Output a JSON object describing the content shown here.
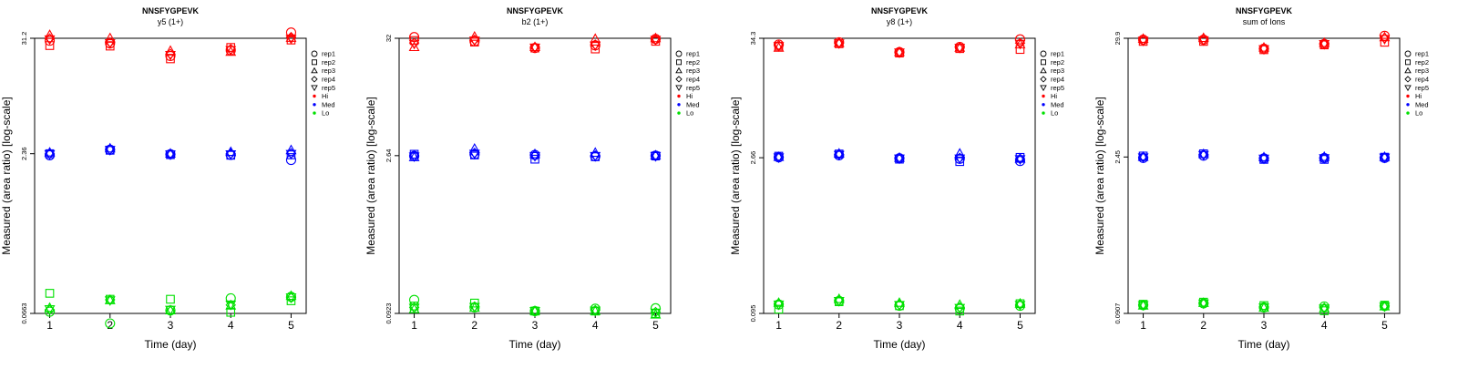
{
  "colors": {
    "Hi": "#ff0000",
    "Med": "#0000ff",
    "Lo": "#00e000",
    "axis": "#000000"
  },
  "legend": {
    "entries": [
      {
        "label": "rep1",
        "symbol": "circle"
      },
      {
        "label": "rep2",
        "symbol": "square"
      },
      {
        "label": "rep3",
        "symbol": "triangle-up"
      },
      {
        "label": "rep4",
        "symbol": "diamond"
      },
      {
        "label": "rep5",
        "symbol": "triangle-down"
      },
      {
        "label": "Hi",
        "symbol": "dot",
        "color_key": "Hi"
      },
      {
        "label": "Med",
        "symbol": "dot",
        "color_key": "Med"
      },
      {
        "label": "Lo",
        "symbol": "dot",
        "color_key": "Lo"
      }
    ]
  },
  "chart_data": [
    {
      "type": "scatter",
      "title": "NNSFYGPEVK",
      "subtitle": "y5 (1+)",
      "xlabel": "Time (day)",
      "ylabel": "Measured (area ratio) [log-scale]",
      "x_ticks": [
        1,
        2,
        3,
        4,
        5
      ],
      "y_tick_labels": [
        "0.0663",
        "2.36",
        "31.2"
      ],
      "y_scale": "log",
      "ylim": [
        0.0663,
        31.2
      ],
      "grid": false,
      "legend_position": "right",
      "series": [
        {
          "level": "Hi",
          "rep": "rep1",
          "values": [
            29.5,
            27.8,
            21.0,
            23.8,
            35.5
          ]
        },
        {
          "level": "Hi",
          "rep": "rep2",
          "values": [
            26.5,
            26.2,
            19.7,
            25.4,
            30.0
          ]
        },
        {
          "level": "Hi",
          "rep": "rep3",
          "values": [
            33.5,
            31.2,
            23.5,
            23.0,
            31.5
          ]
        },
        {
          "level": "Hi",
          "rep": "rep4",
          "values": [
            31.0,
            28.5,
            22.0,
            24.5,
            32.0
          ]
        },
        {
          "level": "Hi",
          "rep": "rep5",
          "values": [
            30.5,
            28.0,
            21.5,
            24.0,
            31.0
          ]
        },
        {
          "level": "Med",
          "rep": "rep1",
          "values": [
            2.28,
            2.58,
            2.33,
            2.3,
            2.05
          ]
        },
        {
          "level": "Med",
          "rep": "rep2",
          "values": [
            2.36,
            2.55,
            2.31,
            2.28,
            2.3
          ]
        },
        {
          "level": "Med",
          "rep": "rep3",
          "values": [
            2.42,
            2.65,
            2.36,
            2.45,
            2.55
          ]
        },
        {
          "level": "Med",
          "rep": "rep4",
          "values": [
            2.35,
            2.6,
            2.33,
            2.36,
            2.38
          ]
        },
        {
          "level": "Med",
          "rep": "rep5",
          "values": [
            2.34,
            2.57,
            2.32,
            2.33,
            2.35
          ]
        },
        {
          "level": "Lo",
          "rep": "rep1",
          "values": [
            0.069,
            0.053,
            0.071,
            0.093,
            0.096
          ]
        },
        {
          "level": "Lo",
          "rep": "rep2",
          "values": [
            0.104,
            0.091,
            0.091,
            0.068,
            0.088
          ]
        },
        {
          "level": "Lo",
          "rep": "rep3",
          "values": [
            0.075,
            0.089,
            0.071,
            0.079,
            0.098
          ]
        },
        {
          "level": "Lo",
          "rep": "rep4",
          "values": [
            0.072,
            0.09,
            0.07,
            0.08,
            0.094
          ]
        },
        {
          "level": "Lo",
          "rep": "rep5",
          "values": [
            0.073,
            0.089,
            0.072,
            0.081,
            0.095
          ]
        }
      ]
    },
    {
      "type": "scatter",
      "title": "NNSFYGPEVK",
      "subtitle": "b2 (1+)",
      "xlabel": "Time (day)",
      "ylabel": "Measured (area ratio) [log-scale]",
      "x_ticks": [
        1,
        2,
        3,
        4,
        5
      ],
      "y_tick_labels": [
        "0.0923",
        "2.64",
        "32"
      ],
      "y_scale": "log",
      "ylim": [
        0.0923,
        32
      ],
      "grid": false,
      "legend_position": "right",
      "series": [
        {
          "level": "Hi",
          "rep": "rep1",
          "values": [
            32.8,
            30.0,
            26.0,
            27.5,
            31.5
          ]
        },
        {
          "level": "Hi",
          "rep": "rep2",
          "values": [
            30.5,
            29.5,
            26.0,
            25.5,
            30.0
          ]
        },
        {
          "level": "Hi",
          "rep": "rep3",
          "values": [
            26.5,
            33.0,
            26.5,
            31.5,
            32.0
          ]
        },
        {
          "level": "Hi",
          "rep": "rep4",
          "values": [
            29.0,
            31.0,
            26.5,
            28.0,
            31.0
          ]
        },
        {
          "level": "Hi",
          "rep": "rep5",
          "values": [
            28.5,
            30.5,
            26.3,
            27.5,
            31.0
          ]
        },
        {
          "level": "Med",
          "rep": "rep1",
          "values": [
            2.62,
            2.72,
            2.68,
            2.6,
            2.64
          ]
        },
        {
          "level": "Med",
          "rep": "rep2",
          "values": [
            2.72,
            2.68,
            2.45,
            2.58,
            2.62
          ]
        },
        {
          "level": "Med",
          "rep": "rep3",
          "values": [
            2.55,
            3.05,
            2.72,
            2.8,
            2.65
          ]
        },
        {
          "level": "Med",
          "rep": "rep4",
          "values": [
            2.63,
            2.8,
            2.65,
            2.65,
            2.63
          ]
        },
        {
          "level": "Med",
          "rep": "rep5",
          "values": [
            2.6,
            2.75,
            2.62,
            2.62,
            2.62
          ]
        },
        {
          "level": "Lo",
          "rep": "rep1",
          "values": [
            0.123,
            0.105,
            0.097,
            0.102,
            0.103
          ]
        },
        {
          "level": "Lo",
          "rep": "rep2",
          "values": [
            0.108,
            0.115,
            0.097,
            0.097,
            0.092
          ]
        },
        {
          "level": "Lo",
          "rep": "rep3",
          "values": [
            0.101,
            0.104,
            0.097,
            0.097,
            0.09
          ]
        },
        {
          "level": "Lo",
          "rep": "rep4",
          "values": [
            0.105,
            0.107,
            0.097,
            0.099,
            0.095
          ]
        },
        {
          "level": "Lo",
          "rep": "rep5",
          "values": [
            0.104,
            0.106,
            0.097,
            0.098,
            0.094
          ]
        }
      ]
    },
    {
      "type": "scatter",
      "title": "NNSFYGPEVK",
      "subtitle": "y8 (1+)",
      "xlabel": "Time (day)",
      "ylabel": "Measured (area ratio) [log-scale]",
      "x_ticks": [
        1,
        2,
        3,
        4,
        5
      ],
      "y_tick_labels": [
        "0.095",
        "2.66",
        "34.3"
      ],
      "y_scale": "log",
      "ylim": [
        0.095,
        34.3
      ],
      "grid": false,
      "legend_position": "right",
      "series": [
        {
          "level": "Hi",
          "rep": "rep1",
          "values": [
            30.0,
            31.5,
            25.5,
            28.5,
            33.5
          ]
        },
        {
          "level": "Hi",
          "rep": "rep2",
          "values": [
            29.0,
            30.5,
            25.0,
            27.5,
            27.0
          ]
        },
        {
          "level": "Hi",
          "rep": "rep3",
          "values": [
            28.0,
            31.0,
            25.5,
            28.0,
            30.0
          ]
        },
        {
          "level": "Hi",
          "rep": "rep4",
          "values": [
            29.5,
            31.0,
            25.5,
            28.3,
            31.0
          ]
        },
        {
          "level": "Hi",
          "rep": "rep5",
          "values": [
            29.0,
            30.8,
            25.3,
            28.0,
            30.5
          ]
        },
        {
          "level": "Med",
          "rep": "rep1",
          "values": [
            2.68,
            2.8,
            2.63,
            2.6,
            2.48
          ]
        },
        {
          "level": "Med",
          "rep": "rep2",
          "values": [
            2.75,
            2.88,
            2.58,
            2.45,
            2.68
          ]
        },
        {
          "level": "Med",
          "rep": "rep3",
          "values": [
            2.7,
            2.9,
            2.65,
            2.9,
            2.6
          ]
        },
        {
          "level": "Med",
          "rep": "rep4",
          "values": [
            2.7,
            2.85,
            2.63,
            2.65,
            2.6
          ]
        },
        {
          "level": "Med",
          "rep": "rep5",
          "values": [
            2.68,
            2.83,
            2.62,
            2.62,
            2.58
          ]
        },
        {
          "level": "Lo",
          "rep": "rep1",
          "values": [
            0.115,
            0.124,
            0.112,
            0.106,
            0.112
          ]
        },
        {
          "level": "Lo",
          "rep": "rep2",
          "values": [
            0.104,
            0.122,
            0.112,
            0.1,
            0.117
          ]
        },
        {
          "level": "Lo",
          "rep": "rep3",
          "values": [
            0.119,
            0.129,
            0.119,
            0.114,
            0.117
          ]
        },
        {
          "level": "Lo",
          "rep": "rep4",
          "values": [
            0.116,
            0.125,
            0.115,
            0.108,
            0.115
          ]
        },
        {
          "level": "Lo",
          "rep": "rep5",
          "values": [
            0.115,
            0.124,
            0.114,
            0.107,
            0.114
          ]
        }
      ]
    },
    {
      "type": "scatter",
      "title": "NNSFYGPEVK",
      "subtitle": "sum of Ions",
      "xlabel": "Time (day)",
      "ylabel": "Measured (area ratio) [log-scale]",
      "x_ticks": [
        1,
        2,
        3,
        4,
        5
      ],
      "y_tick_labels": [
        "0.0907",
        "2.45",
        "29.9"
      ],
      "y_scale": "log",
      "ylim": [
        0.0907,
        29.9
      ],
      "grid": false,
      "legend_position": "right",
      "series": [
        {
          "level": "Hi",
          "rep": "rep1",
          "values": [
            29.0,
            29.0,
            24.0,
            26.5,
            31.5
          ]
        },
        {
          "level": "Hi",
          "rep": "rep2",
          "values": [
            28.0,
            28.0,
            23.5,
            26.0,
            27.5
          ]
        },
        {
          "level": "Hi",
          "rep": "rep3",
          "values": [
            29.5,
            30.0,
            24.5,
            27.0,
            30.5
          ]
        },
        {
          "level": "Hi",
          "rep": "rep4",
          "values": [
            28.8,
            29.0,
            24.0,
            26.7,
            30.0
          ]
        },
        {
          "level": "Hi",
          "rep": "rep5",
          "values": [
            28.5,
            28.7,
            23.8,
            26.5,
            29.5
          ]
        },
        {
          "level": "Med",
          "rep": "rep1",
          "values": [
            2.4,
            2.52,
            2.38,
            2.4,
            2.4
          ]
        },
        {
          "level": "Med",
          "rep": "rep2",
          "values": [
            2.5,
            2.62,
            2.33,
            2.33,
            2.44
          ]
        },
        {
          "level": "Med",
          "rep": "rep3",
          "values": [
            2.45,
            2.6,
            2.43,
            2.45,
            2.45
          ]
        },
        {
          "level": "Med",
          "rep": "rep4",
          "values": [
            2.44,
            2.58,
            2.38,
            2.4,
            2.43
          ]
        },
        {
          "level": "Med",
          "rep": "rep5",
          "values": [
            2.43,
            2.56,
            2.37,
            2.39,
            2.42
          ]
        },
        {
          "level": "Lo",
          "rep": "rep1",
          "values": [
            0.108,
            0.112,
            0.103,
            0.105,
            0.106
          ]
        },
        {
          "level": "Lo",
          "rep": "rep2",
          "values": [
            0.11,
            0.115,
            0.107,
            0.096,
            0.108
          ]
        },
        {
          "level": "Lo",
          "rep": "rep3",
          "values": [
            0.107,
            0.113,
            0.102,
            0.101,
            0.105
          ]
        },
        {
          "level": "Lo",
          "rep": "rep4",
          "values": [
            0.108,
            0.113,
            0.104,
            0.102,
            0.106
          ]
        },
        {
          "level": "Lo",
          "rep": "rep5",
          "values": [
            0.108,
            0.112,
            0.103,
            0.101,
            0.105
          ]
        }
      ]
    }
  ]
}
